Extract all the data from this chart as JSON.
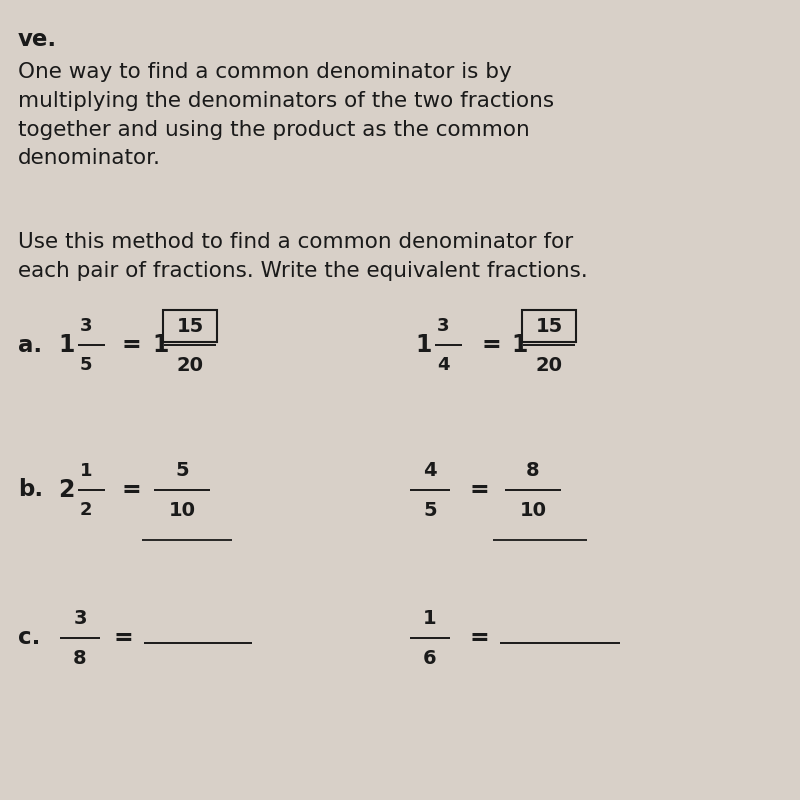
{
  "bg_color": "#d8d0c8",
  "text_color": "#1a1a1a",
  "paragraph1": "One way to find a common denominator is by\nmultiplying the denominators of the two fractions\ntogether and using the product as the common\ndenominator.",
  "paragraph2": "Use this method to find a common denominator for\neach pair of fractions. Write the equivalent fractions.",
  "label_ve": "ve.",
  "font_size_body": 15.5,
  "font_size_label": 16,
  "font_size_math": 17,
  "font_size_math_small": 14
}
